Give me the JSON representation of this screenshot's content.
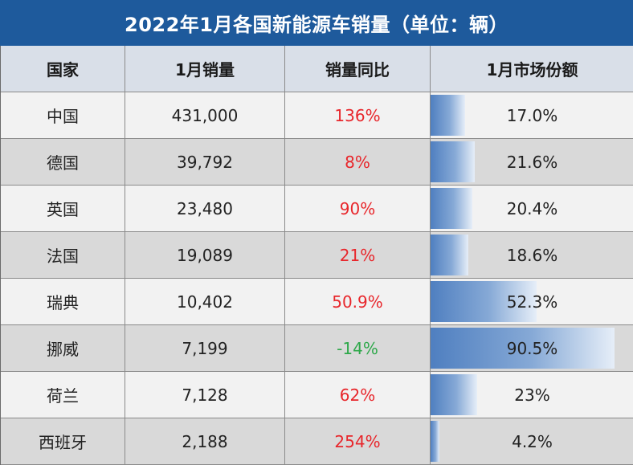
{
  "title": "2022年1月各国新能源车销量（单位：辆）",
  "headers": [
    "国家",
    "1月销量",
    "销量同比",
    "1月市场份额"
  ],
  "colors": {
    "title_bg": "#1e5a9c",
    "header_bg": "#d9dfe8",
    "positive": "#e8262b",
    "negative": "#2ea84a",
    "bar": "#4f7fc0"
  },
  "rows": [
    {
      "country": "中国",
      "sales": "431,000",
      "yoy": "136%",
      "share": "17.0%"
    },
    {
      "country": "德国",
      "sales": "39,792",
      "yoy": "8%",
      "share": "21.6%"
    },
    {
      "country": "英国",
      "sales": "23,480",
      "yoy": "90%",
      "share": "20.4%"
    },
    {
      "country": "法国",
      "sales": "19,089",
      "yoy": "21%",
      "share": "18.6%"
    },
    {
      "country": "瑞典",
      "sales": "10,402",
      "yoy": "50.9%",
      "share": "52.3%"
    },
    {
      "country": "挪威",
      "sales": "7,199",
      "yoy": "-14%",
      "share": "90.5%"
    },
    {
      "country": "荷兰",
      "sales": "7,128",
      "yoy": "62%",
      "share": "23%"
    },
    {
      "country": "西班牙",
      "sales": "2,188",
      "yoy": "254%",
      "share": "4.2%"
    }
  ],
  "chart_data": {
    "type": "table",
    "title": "2022年1月各国新能源车销量（单位：辆）",
    "columns": [
      "国家",
      "1月销量",
      "销量同比",
      "1月市场份额"
    ],
    "categories": [
      "中国",
      "德国",
      "英国",
      "法国",
      "瑞典",
      "挪威",
      "荷兰",
      "西班牙"
    ],
    "series": [
      {
        "name": "1月销量",
        "values": [
          431000,
          39792,
          23480,
          19089,
          10402,
          7199,
          7128,
          2188
        ]
      },
      {
        "name": "销量同比",
        "values": [
          136,
          8,
          90,
          21,
          50.9,
          -14,
          62,
          254
        ]
      },
      {
        "name": "1月市场份额",
        "values": [
          17.0,
          21.6,
          20.4,
          18.6,
          52.3,
          90.5,
          23,
          4.2
        ]
      }
    ]
  }
}
